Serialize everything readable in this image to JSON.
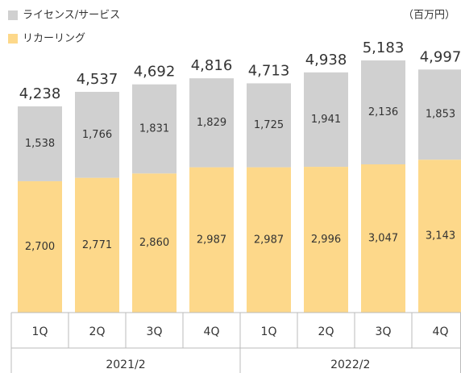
{
  "chart_data": {
    "type": "stacked_bar",
    "unit": "（百万円）",
    "categories": [
      "1Q",
      "2Q",
      "3Q",
      "4Q",
      "1Q",
      "2Q",
      "3Q",
      "4Q"
    ],
    "groups": [
      "2021/2",
      "2022/2"
    ],
    "series": [
      {
        "name": "リカーリング",
        "color": "#fdd88a",
        "values": [
          2700,
          2771,
          2860,
          2987,
          2987,
          2996,
          3047,
          3143
        ],
        "value_labels": [
          "2,700",
          "2,771",
          "2,860",
          "2,987",
          "2,987",
          "2,996",
          "3,047",
          "3,143"
        ]
      },
      {
        "name": "ライセンス/サービス",
        "color": "#d0d0d0",
        "values": [
          1538,
          1766,
          1831,
          1829,
          1725,
          1941,
          2136,
          1853
        ],
        "value_labels": [
          "1,538",
          "1,766",
          "1,831",
          "1,829",
          "1,725",
          "1,941",
          "2,136",
          "1,853"
        ]
      }
    ],
    "totals": {
      "values": [
        4238,
        4537,
        4692,
        4816,
        4713,
        4938,
        5183,
        4997
      ],
      "value_labels": [
        "4,238",
        "4,537",
        "4,692",
        "4,816",
        "4,713",
        "4,938",
        "5,183",
        "4,997"
      ]
    }
  }
}
